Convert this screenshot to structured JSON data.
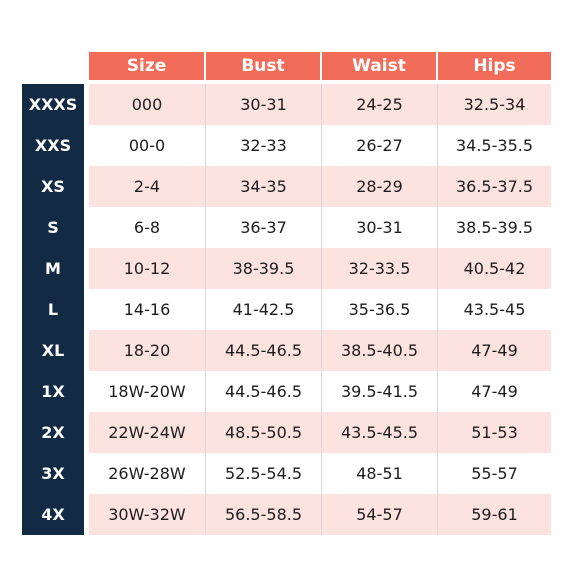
{
  "headers": [
    "Size",
    "Bust",
    "Waist",
    "Hips"
  ],
  "rows": [
    {
      "label": "XXXS",
      "size": "000",
      "bust": "30-31",
      "waist": "24-25",
      "hips": "32.5-34"
    },
    {
      "label": "XXS",
      "size": "00-0",
      "bust": "32-33",
      "waist": "26-27",
      "hips": "34.5-35.5"
    },
    {
      "label": "XS",
      "size": "2-4",
      "bust": "34-35",
      "waist": "28-29",
      "hips": "36.5-37.5"
    },
    {
      "label": "S",
      "size": "6-8",
      "bust": "36-37",
      "waist": "30-31",
      "hips": "38.5-39.5"
    },
    {
      "label": "M",
      "size": "10-12",
      "bust": "38-39.5",
      "waist": "32-33.5",
      "hips": "40.5-42"
    },
    {
      "label": "L",
      "size": "14-16",
      "bust": "41-42.5",
      "waist": "35-36.5",
      "hips": "43.5-45"
    },
    {
      "label": "XL",
      "size": "18-20",
      "bust": "44.5-46.5",
      "waist": "38.5-40.5",
      "hips": "47-49"
    },
    {
      "label": "1X",
      "size": "18W-20W",
      "bust": "44.5-46.5",
      "waist": "39.5-41.5",
      "hips": "47-49"
    },
    {
      "label": "2X",
      "size": "22W-24W",
      "bust": "48.5-50.5",
      "waist": "43.5-45.5",
      "hips": "51-53"
    },
    {
      "label": "3X",
      "size": "26W-28W",
      "bust": "52.5-54.5",
      "waist": "48-51",
      "hips": "55-57"
    },
    {
      "label": "4X",
      "size": "30W-32W",
      "bust": "56.5-58.5",
      "waist": "54-57",
      "hips": "59-61"
    }
  ],
  "colors": {
    "header_bg": "#f26c5a",
    "label_col_bg": "#132a45",
    "shaded_row_bg": "#fde3e0",
    "plain_row_bg": "#ffffff"
  }
}
